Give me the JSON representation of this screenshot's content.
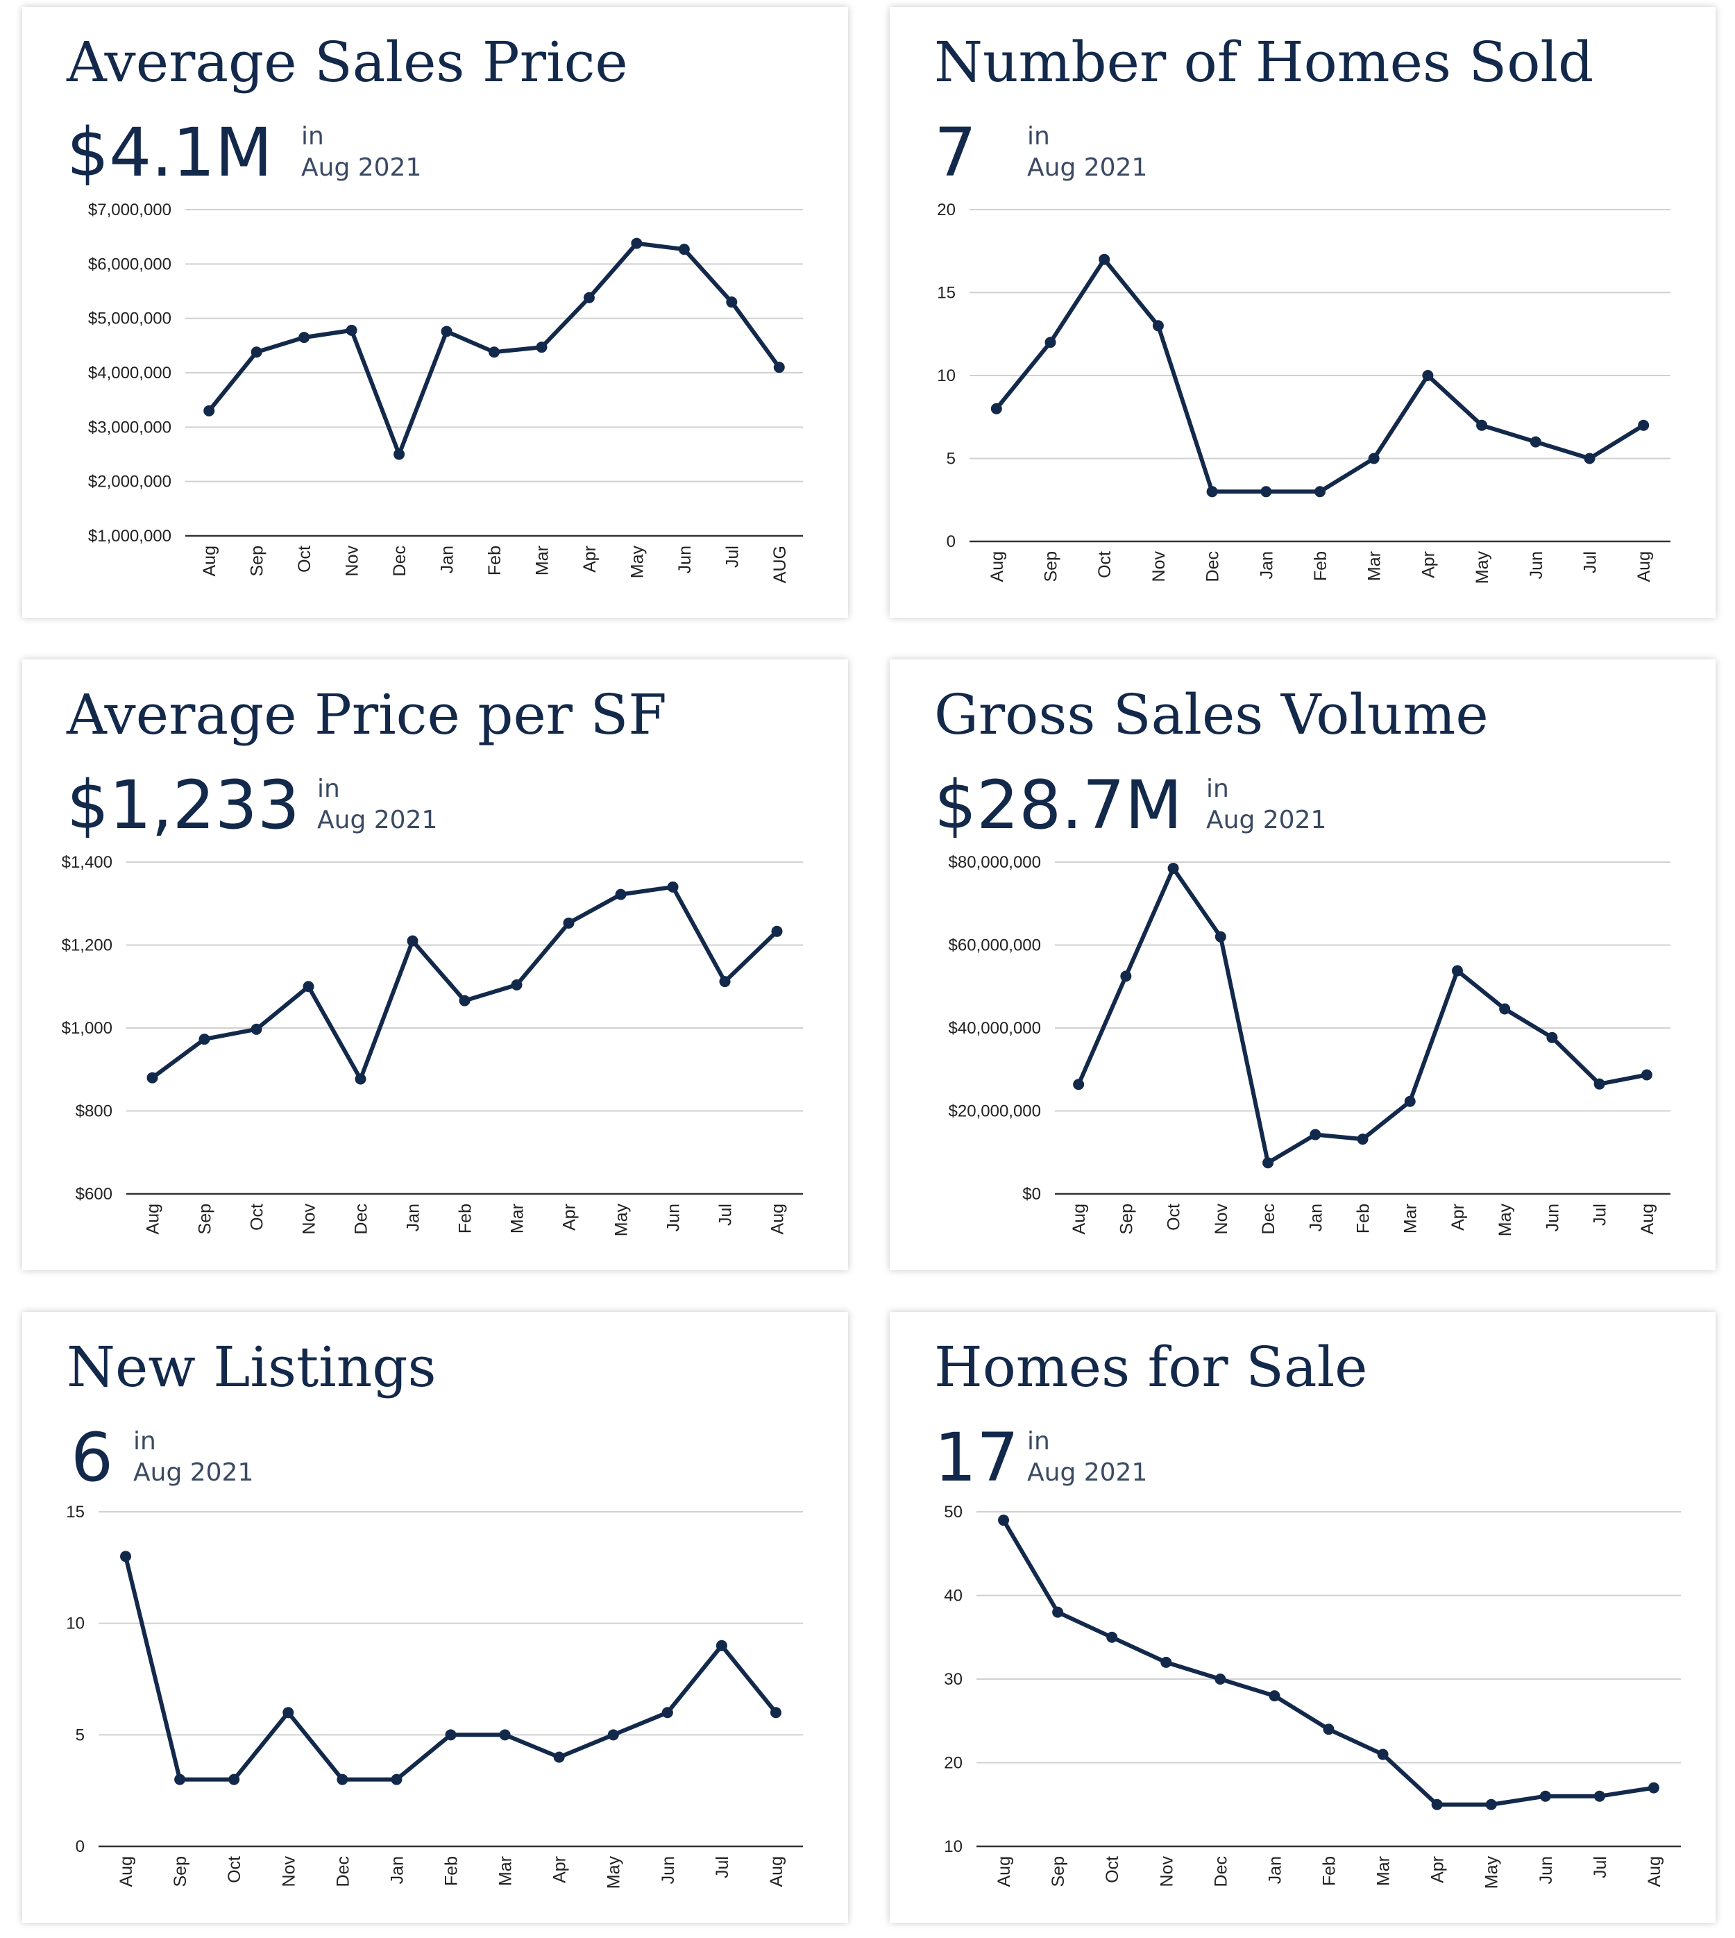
{
  "chart_data": [
    {
      "type": "line",
      "title": "Average Sales Price",
      "value": "$4.1M",
      "in_label": "in",
      "period": "Aug 2021",
      "categories": [
        "Aug",
        "Sep",
        "Oct",
        "Nov",
        "Dec",
        "Jan",
        "Feb",
        "Mar",
        "Apr",
        "May",
        "Jun",
        "Jul",
        "AUG"
      ],
      "values": [
        3300000,
        4380000,
        4650000,
        4780000,
        2500000,
        4760000,
        4380000,
        4470000,
        5380000,
        6380000,
        6270000,
        5300000,
        4100000
      ],
      "ylim": [
        1000000,
        7000000
      ],
      "yticks": [
        1000000,
        2000000,
        3000000,
        4000000,
        5000000,
        6000000,
        7000000
      ],
      "ytick_labels": [
        "$1,000,000",
        "$2,000,000",
        "$3,000,000",
        "$4,000,000",
        "$5,000,000",
        "$6,000,000",
        "$7,000,000"
      ],
      "xlabel": "",
      "ylabel": "",
      "grid": true
    },
    {
      "type": "line",
      "title": "Number of Homes Sold",
      "value": "7",
      "in_label": "in",
      "period": "Aug 2021",
      "categories": [
        "Aug",
        "Sep",
        "Oct",
        "Nov",
        "Dec",
        "Jan",
        "Feb",
        "Mar",
        "Apr",
        "May",
        "Jun",
        "Jul",
        "Aug"
      ],
      "values": [
        8,
        12,
        17,
        13,
        3,
        3,
        3,
        5,
        10,
        7,
        6,
        5,
        7
      ],
      "ylim": [
        0,
        20
      ],
      "yticks": [
        0,
        5,
        10,
        15,
        20
      ],
      "ytick_labels": [
        "0",
        "5",
        "10",
        "15",
        "20"
      ],
      "xlabel": "",
      "ylabel": "",
      "grid": true
    },
    {
      "type": "line",
      "title": "Average Price per SF",
      "value": "$1,233",
      "in_label": "in",
      "period": "Aug 2021",
      "categories": [
        "Aug",
        "Sep",
        "Oct",
        "Nov",
        "Dec",
        "Jan",
        "Feb",
        "Mar",
        "Apr",
        "May",
        "Jun",
        "Jul",
        "Aug"
      ],
      "values": [
        880,
        973,
        997,
        1100,
        877,
        1210,
        1066,
        1104,
        1253,
        1322,
        1340,
        1112,
        1233
      ],
      "ylim": [
        600,
        1400
      ],
      "yticks": [
        600,
        800,
        1000,
        1200,
        1400
      ],
      "ytick_labels": [
        "$600",
        "$800",
        "$1,000",
        "$1,200",
        "$1,400"
      ],
      "xlabel": "",
      "ylabel": "",
      "grid": true
    },
    {
      "type": "line",
      "title": "Gross Sales Volume",
      "value": "$28.7M",
      "in_label": "in",
      "period": "Aug 2021",
      "categories": [
        "Aug",
        "Sep",
        "Oct",
        "Nov",
        "Dec",
        "Jan",
        "Feb",
        "Mar",
        "Apr",
        "May",
        "Jun",
        "Jul",
        "Aug"
      ],
      "values": [
        26400000,
        52500000,
        78500000,
        62000000,
        7500000,
        14300000,
        13200000,
        22300000,
        53800000,
        44600000,
        37700000,
        26500000,
        28700000
      ],
      "ylim": [
        0,
        80000000
      ],
      "yticks": [
        0,
        20000000,
        40000000,
        60000000,
        80000000
      ],
      "ytick_labels": [
        "$0",
        "$20,000,000",
        "$40,000,000",
        "$60,000,000",
        "$80,000,000"
      ],
      "xlabel": "",
      "ylabel": "",
      "grid": true
    },
    {
      "type": "line",
      "title": "New Listings",
      "value": "6",
      "in_label": "in",
      "period": "Aug 2021",
      "categories": [
        "Aug",
        "Sep",
        "Oct",
        "Nov",
        "Dec",
        "Jan",
        "Feb",
        "Mar",
        "Apr",
        "May",
        "Jun",
        "Jul",
        "Aug"
      ],
      "values": [
        13,
        3,
        3,
        6,
        3,
        3,
        5,
        5,
        4,
        5,
        6,
        9,
        6
      ],
      "ylim": [
        0,
        15
      ],
      "yticks": [
        0,
        5,
        10,
        15
      ],
      "ytick_labels": [
        "0",
        "5",
        "10",
        "15"
      ],
      "xlabel": "",
      "ylabel": "",
      "grid": true
    },
    {
      "type": "line",
      "title": "Homes for Sale",
      "value": "17",
      "in_label": "in",
      "period": "Aug 2021",
      "categories": [
        "Aug",
        "Sep",
        "Oct",
        "Nov",
        "Dec",
        "Jan",
        "Feb",
        "Mar",
        "Apr",
        "May",
        "Jun",
        "Jul",
        "Aug"
      ],
      "values": [
        49,
        38,
        35,
        32,
        30,
        28,
        24,
        21,
        15,
        15,
        16,
        16,
        17
      ],
      "ylim": [
        10,
        50
      ],
      "yticks": [
        10,
        20,
        30,
        40,
        50
      ],
      "ytick_labels": [
        "10",
        "20",
        "30",
        "40",
        "50"
      ],
      "xlabel": "",
      "ylabel": "",
      "grid": true
    }
  ]
}
